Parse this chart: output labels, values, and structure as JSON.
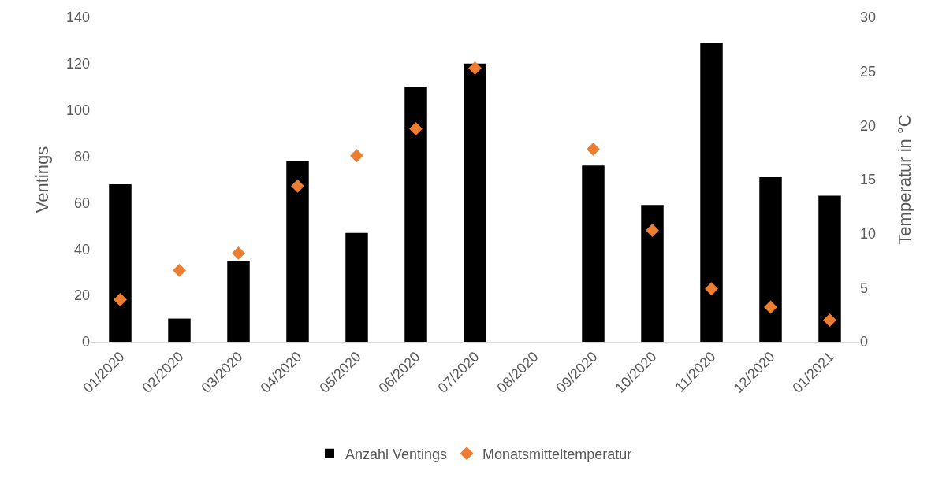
{
  "chart_data": {
    "type": "bar",
    "categories": [
      "01/2020",
      "02/2020",
      "03/2020",
      "04/2020",
      "05/2020",
      "06/2020",
      "07/2020",
      "08/2020",
      "09/2020",
      "10/2020",
      "11/2020",
      "12/2020",
      "01/2021"
    ],
    "series": [
      {
        "name": "Anzahl Ventings",
        "color": "#000000",
        "values": [
          68,
          10,
          35,
          78,
          47,
          110,
          120,
          null,
          76,
          59,
          129,
          71,
          63
        ]
      },
      {
        "name": "Monatsmitteltemperatur",
        "type": "scatter",
        "axis": "y2",
        "color": "#ed7d31",
        "marker": "diamond",
        "values": [
          3.9,
          6.6,
          8.2,
          14.4,
          17.2,
          19.7,
          25.3,
          null,
          17.8,
          10.3,
          4.9,
          3.2,
          2.0
        ]
      }
    ],
    "ylabel": "Ventings",
    "y2label": "Temperatur in °C",
    "ylim": [
      0,
      140
    ],
    "yticks": [
      0,
      20,
      40,
      60,
      80,
      100,
      120,
      140
    ],
    "y2lim": [
      0,
      30
    ],
    "y2ticks": [
      0,
      5,
      10,
      15,
      20,
      25,
      30
    ],
    "grid": false,
    "legend": "bottom"
  }
}
